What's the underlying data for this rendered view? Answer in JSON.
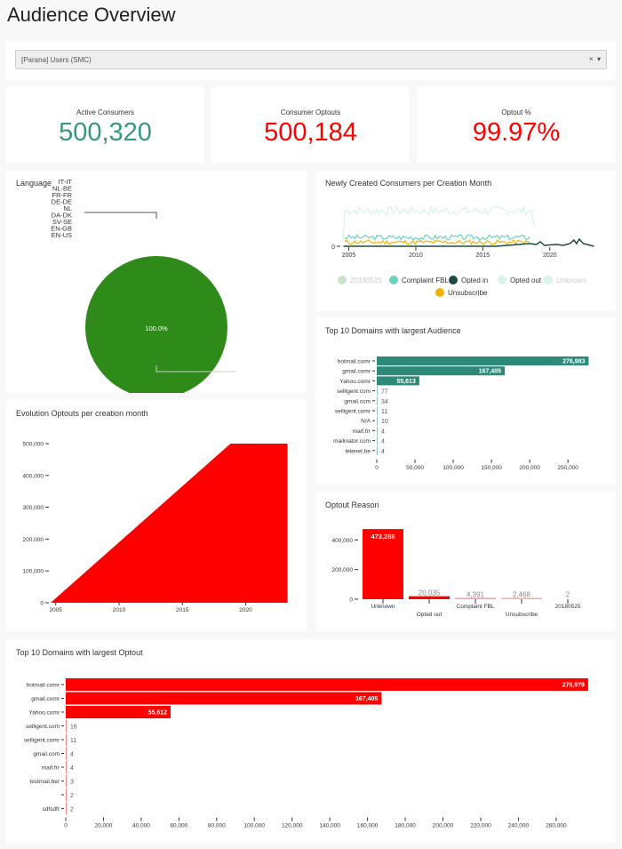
{
  "page": {
    "title": "Audience Overview"
  },
  "filter": {
    "value": "[Parana] Users (SMC)",
    "clear_icon": "×",
    "dropdown_icon": "▾"
  },
  "kpis": [
    {
      "label": "Active Consumers",
      "value": "500,320",
      "color": "#3a9584"
    },
    {
      "label": "Consumer Optouts",
      "value": "500,184",
      "color": "#ff0000"
    },
    {
      "label": "Optout %",
      "value": "99.97%",
      "color": "#ff0000"
    }
  ],
  "chart_data": [
    {
      "id": "language",
      "type": "pie",
      "title": "Language",
      "legend": [
        "IT-IT",
        "NL-BE",
        "FR-FR",
        "DE-DE",
        "NL",
        "DA-DK",
        "SV-SE",
        "EN-GB",
        "EN-US"
      ],
      "slices": [
        {
          "label": "NL",
          "value": 100.0,
          "color": "#2e8b1a"
        }
      ],
      "slice_label": "100.0%"
    },
    {
      "id": "newly-created",
      "type": "line",
      "title": "Newly Created Consumers per Creation Month",
      "x_ticks": [
        "2005",
        "2010",
        "2015",
        "2020"
      ],
      "y_ticks": [
        "0"
      ],
      "series": [
        {
          "name": "20180525",
          "color": "#c9e3c9",
          "muted": true
        },
        {
          "name": "Complaint FBL",
          "color": "#6fd0c0"
        },
        {
          "name": "Opted in",
          "color": "#1e4a44"
        },
        {
          "name": "Opted out",
          "color": "#d6f3ee"
        },
        {
          "name": "Unknown",
          "color": "#d6f3ee",
          "muted": true
        },
        {
          "name": "Unsubscribe",
          "color": "#f0b400"
        }
      ]
    },
    {
      "id": "top-domains-audience",
      "type": "bar",
      "orientation": "horizontal",
      "title": "Top 10 Domains with largest Audience",
      "color": "#2e8a78",
      "categories": [
        "hotmail.comr",
        "gmail.comr",
        "Yahoo.comr",
        "selligent.com",
        "gmail.com",
        "selligent.comr",
        "N/A",
        "maif.frr",
        "mailinator.com",
        "telenet.be"
      ],
      "values": [
        276983,
        167405,
        55613,
        77,
        34,
        11,
        10,
        4,
        4,
        4
      ],
      "labels": [
        "276,983",
        "167,405",
        "55,613",
        "77",
        "34",
        "11",
        "10",
        "4",
        "4",
        "4"
      ],
      "x_ticks": [
        0,
        50000,
        100000,
        150000,
        200000,
        250000
      ],
      "x_tick_labels": [
        "0",
        "50,000",
        "100,000",
        "150,000",
        "200,000",
        "250,000"
      ],
      "xlim": [
        0,
        280000
      ]
    },
    {
      "id": "evolution-optouts",
      "type": "area",
      "title": "Evolution Optouts per creation month",
      "color": "#ff0000",
      "x": [
        2004.6,
        2018.8,
        2023.3
      ],
      "y": [
        0,
        500000,
        500000
      ],
      "x_ticks": [
        2005,
        2010,
        2015,
        2020
      ],
      "x_tick_labels": [
        "2005",
        "2010",
        "2015",
        "2020"
      ],
      "y_ticks": [
        0,
        100000,
        200000,
        300000,
        400000,
        500000
      ],
      "y_tick_labels": [
        "0",
        "100,000",
        "200,000",
        "300,000",
        "400,000",
        "500,000"
      ],
      "xlim": [
        2004.6,
        2023.4
      ],
      "ylim": [
        0,
        500000
      ]
    },
    {
      "id": "optout-reason",
      "type": "bar",
      "title": "Optout Reason",
      "categories": [
        "Unknown",
        "Opted out",
        "Complaint FBL",
        "Unsubscribe",
        "20180525"
      ],
      "values": [
        473288,
        20035,
        4391,
        2468,
        2
      ],
      "labels": [
        "473,288",
        "20,035",
        "4,391",
        "2,468",
        "2"
      ],
      "colors": [
        "#ff0000",
        "#ff0000",
        "#ff9a9a",
        "#ffaaaa",
        "#ffd0d0"
      ],
      "y_ticks": [
        0,
        200000,
        400000
      ],
      "y_tick_labels": [
        "0",
        "200,000",
        "400,000"
      ],
      "ylim": [
        0,
        480000
      ]
    },
    {
      "id": "top-domains-optout",
      "type": "bar",
      "orientation": "horizontal",
      "title": "Top 10 Domains with largest Optout",
      "color": "#ff0000",
      "categories": [
        "hotmail.comr",
        "gmail.comr",
        "Yahoo.comr",
        "selligent.com",
        "selligent.comr",
        "gmail.com",
        "maif.frr",
        "testmail.ber",
        "",
        "sdfsdfr"
      ],
      "values": [
        276979,
        167405,
        55612,
        16,
        11,
        4,
        4,
        3,
        2,
        2
      ],
      "labels": [
        "276,979",
        "167,405",
        "55,612",
        "16",
        "11",
        "4",
        "4",
        "3",
        "2",
        "2"
      ],
      "x_ticks": [
        0,
        20000,
        40000,
        60000,
        80000,
        100000,
        120000,
        140000,
        160000,
        180000,
        200000,
        220000,
        240000,
        260000
      ],
      "x_tick_labels": [
        "0",
        "20,000",
        "40,000",
        "60,000",
        "80,000",
        "100,000",
        "120,000",
        "140,000",
        "160,000",
        "180,000",
        "200,000",
        "220,000",
        "240,000",
        "260,000"
      ],
      "xlim": [
        0,
        277500
      ]
    }
  ]
}
